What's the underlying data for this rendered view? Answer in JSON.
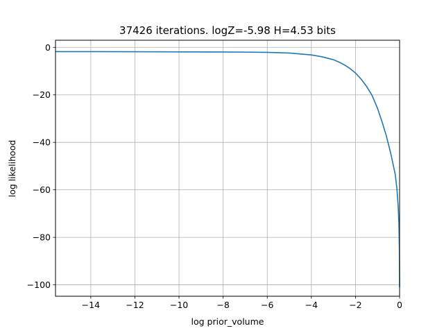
{
  "chart_data": {
    "type": "line",
    "title": "37426 iterations. logZ=-5.98 H=4.53 bits",
    "xlabel": "log prior_volume",
    "ylabel": "log likelihood",
    "xlim": [
      -15.6,
      0.0
    ],
    "ylim": [
      -104.8,
      3.0
    ],
    "grid": true,
    "x_ticks": [
      -14,
      -12,
      -10,
      -8,
      -6,
      -4,
      -2,
      0
    ],
    "x_tick_labels": [
      "−14",
      "−12",
      "−10",
      "−8",
      "−6",
      "−4",
      "−2",
      "0"
    ],
    "y_ticks": [
      0,
      -20,
      -40,
      -60,
      -80,
      -100
    ],
    "y_tick_labels": [
      "0",
      "−20",
      "−40",
      "−60",
      "−80",
      "−100"
    ],
    "series": [
      {
        "color": "#1f77b4",
        "x": [
          -15.6,
          -14,
          -12,
          -10,
          -8,
          -7,
          -6,
          -5,
          -4.5,
          -4,
          -3.5,
          -3,
          -2.75,
          -2.5,
          -2.25,
          -2,
          -1.75,
          -1.5,
          -1.25,
          -1,
          -0.8,
          -0.6,
          -0.4,
          -0.3,
          -0.2,
          -0.12,
          -0.06,
          -0.03,
          -0.01,
          0
        ],
        "y": [
          -1.8,
          -1.8,
          -1.85,
          -1.9,
          -1.95,
          -2.0,
          -2.1,
          -2.4,
          -2.8,
          -3.2,
          -4.0,
          -5.2,
          -6.2,
          -7.4,
          -8.9,
          -10.8,
          -13.3,
          -16.4,
          -20.2,
          -25.7,
          -31.2,
          -37.3,
          -44.7,
          -49.0,
          -53.4,
          -59.6,
          -67.6,
          -74.6,
          -84.5,
          -101.0
        ]
      }
    ]
  }
}
